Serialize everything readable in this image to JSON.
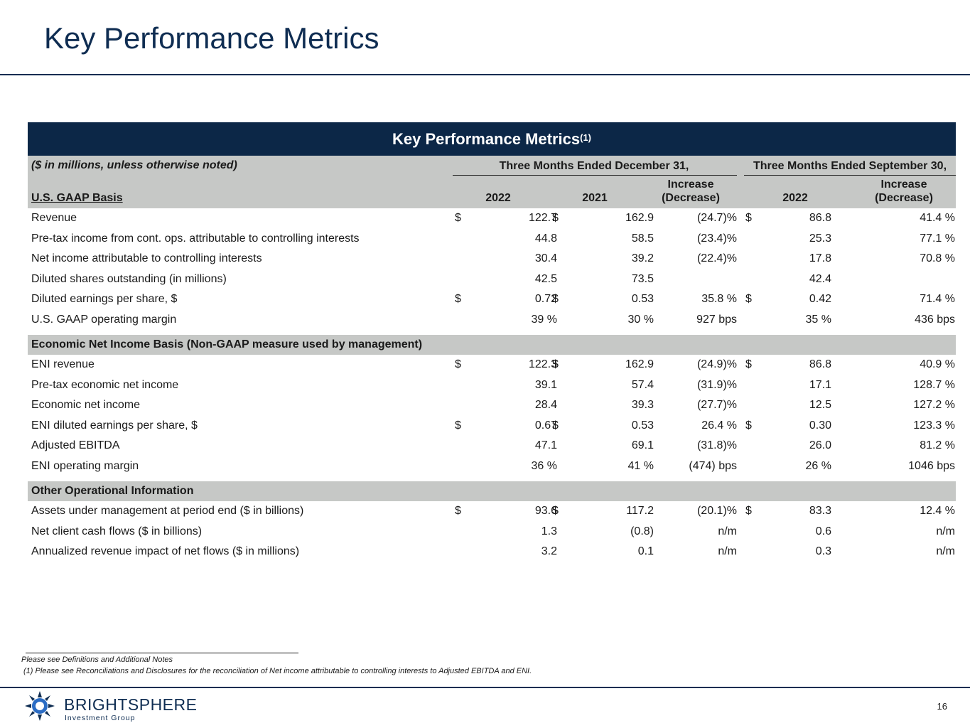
{
  "page": {
    "title": "Key Performance Metrics",
    "number": "16"
  },
  "table": {
    "banner_title": "Key Performance Metrics",
    "banner_sup": "(1)",
    "units_note": "($ in millions, unless otherwise noted)",
    "group_q4": "Three Months Ended December 31,",
    "group_q3": "Three Months Ended September 30,",
    "gaap_label": "U.S. GAAP Basis",
    "col_2022": "2022",
    "col_2021": "2021",
    "col_incr_1": "Increase",
    "col_incr_2": "(Decrease)",
    "col_q3_2022": "2022",
    "col_q3_incr_1": "Increase",
    "col_q3_incr_2": "(Decrease)",
    "gaap_rows": [
      {
        "label": "Revenue",
        "d1": "$",
        "v2022": "122.7",
        "d2": "$",
        "v2021": "162.9",
        "chg": "(24.7)%",
        "d3": "$",
        "q3": "86.8",
        "q3chg": "41.4 %"
      },
      {
        "label": "Pre-tax income from cont. ops. attributable to controlling interests",
        "d1": "",
        "v2022": "44.8",
        "d2": "",
        "v2021": "58.5",
        "chg": "(23.4)%",
        "d3": "",
        "q3": "25.3",
        "q3chg": "77.1 %"
      },
      {
        "label": "Net income attributable to controlling interests",
        "d1": "",
        "v2022": "30.4",
        "d2": "",
        "v2021": "39.2",
        "chg": "(22.4)%",
        "d3": "",
        "q3": "17.8",
        "q3chg": "70.8 %"
      },
      {
        "label": "Diluted shares outstanding (in millions)",
        "d1": "",
        "v2022": "42.5",
        "d2": "",
        "v2021": "73.5",
        "chg": "",
        "d3": "",
        "q3": "42.4",
        "q3chg": ""
      },
      {
        "label": "Diluted earnings per share, $",
        "d1": "$",
        "v2022": "0.72",
        "d2": "$",
        "v2021": "0.53",
        "chg": "35.8 %",
        "d3": "$",
        "q3": "0.42",
        "q3chg": "71.4 %"
      },
      {
        "label": "U.S. GAAP operating margin",
        "d1": "",
        "v2022": "39 %",
        "d2": "",
        "v2021": "30 %",
        "chg": "927 bps",
        "d3": "",
        "q3": "35 %",
        "q3chg": "436 bps"
      }
    ],
    "eni_section": "Economic Net Income Basis (Non-GAAP measure used by management)",
    "eni_rows": [
      {
        "label": "ENI revenue",
        "d1": "$",
        "v2022": "122.3",
        "d2": "$",
        "v2021": "162.9",
        "chg": "(24.9)%",
        "d3": "$",
        "q3": "86.8",
        "q3chg": "40.9 %"
      },
      {
        "label": "Pre-tax economic net income",
        "d1": "",
        "v2022": "39.1",
        "d2": "",
        "v2021": "57.4",
        "chg": "(31.9)%",
        "d3": "",
        "q3": "17.1",
        "q3chg": "128.7 %"
      },
      {
        "label": "Economic net income",
        "d1": "",
        "v2022": "28.4",
        "d2": "",
        "v2021": "39.3",
        "chg": "(27.7)%",
        "d3": "",
        "q3": "12.5",
        "q3chg": "127.2 %"
      },
      {
        "label": "ENI diluted earnings per share, $",
        "d1": "$",
        "v2022": "0.67",
        "d2": "$",
        "v2021": "0.53",
        "chg": "26.4 %",
        "d3": "$",
        "q3": "0.30",
        "q3chg": "123.3 %"
      },
      {
        "label": "Adjusted EBITDA",
        "d1": "",
        "v2022": "47.1",
        "d2": "",
        "v2021": "69.1",
        "chg": "(31.8)%",
        "d3": "",
        "q3": "26.0",
        "q3chg": "81.2 %"
      },
      {
        "label": "ENI operating margin",
        "d1": "",
        "v2022": "36 %",
        "d2": "",
        "v2021": "41 %",
        "chg": "(474) bps",
        "d3": "",
        "q3": "26 %",
        "q3chg": "1046 bps"
      }
    ],
    "other_section": "Other Operational Information",
    "other_rows": [
      {
        "label": "Assets under management at period end ($ in billions)",
        "d1": "$",
        "v2022": "93.6",
        "d2": "$",
        "v2021": "117.2",
        "chg": "(20.1)%",
        "d3": "$",
        "q3": "83.3",
        "q3chg": "12.4 %"
      },
      {
        "label": "Net client cash flows ($ in billions)",
        "d1": "",
        "v2022": "1.3",
        "d2": "",
        "v2021": "(0.8)",
        "chg": "n/m",
        "d3": "",
        "q3": "0.6",
        "q3chg": "n/m"
      },
      {
        "label": "Annualized revenue impact of net flows ($ in millions)",
        "d1": "",
        "v2022": "3.2",
        "d2": "",
        "v2021": "0.1",
        "chg": "n/m",
        "d3": "",
        "q3": "0.3",
        "q3chg": "n/m"
      }
    ]
  },
  "footnotes": {
    "line1": "Please see Definitions and Additional Notes",
    "line2": "(1)   Please see Reconciliations and Disclosures for the reconciliation of Net income attributable to controlling interests to Adjusted EBITDA and ENI."
  },
  "brand": {
    "name": "BRIGHTSPHERE",
    "sub": "Investment Group"
  },
  "colors": {
    "navy": "#0c2747",
    "header_gray": "#c6c8c6"
  }
}
